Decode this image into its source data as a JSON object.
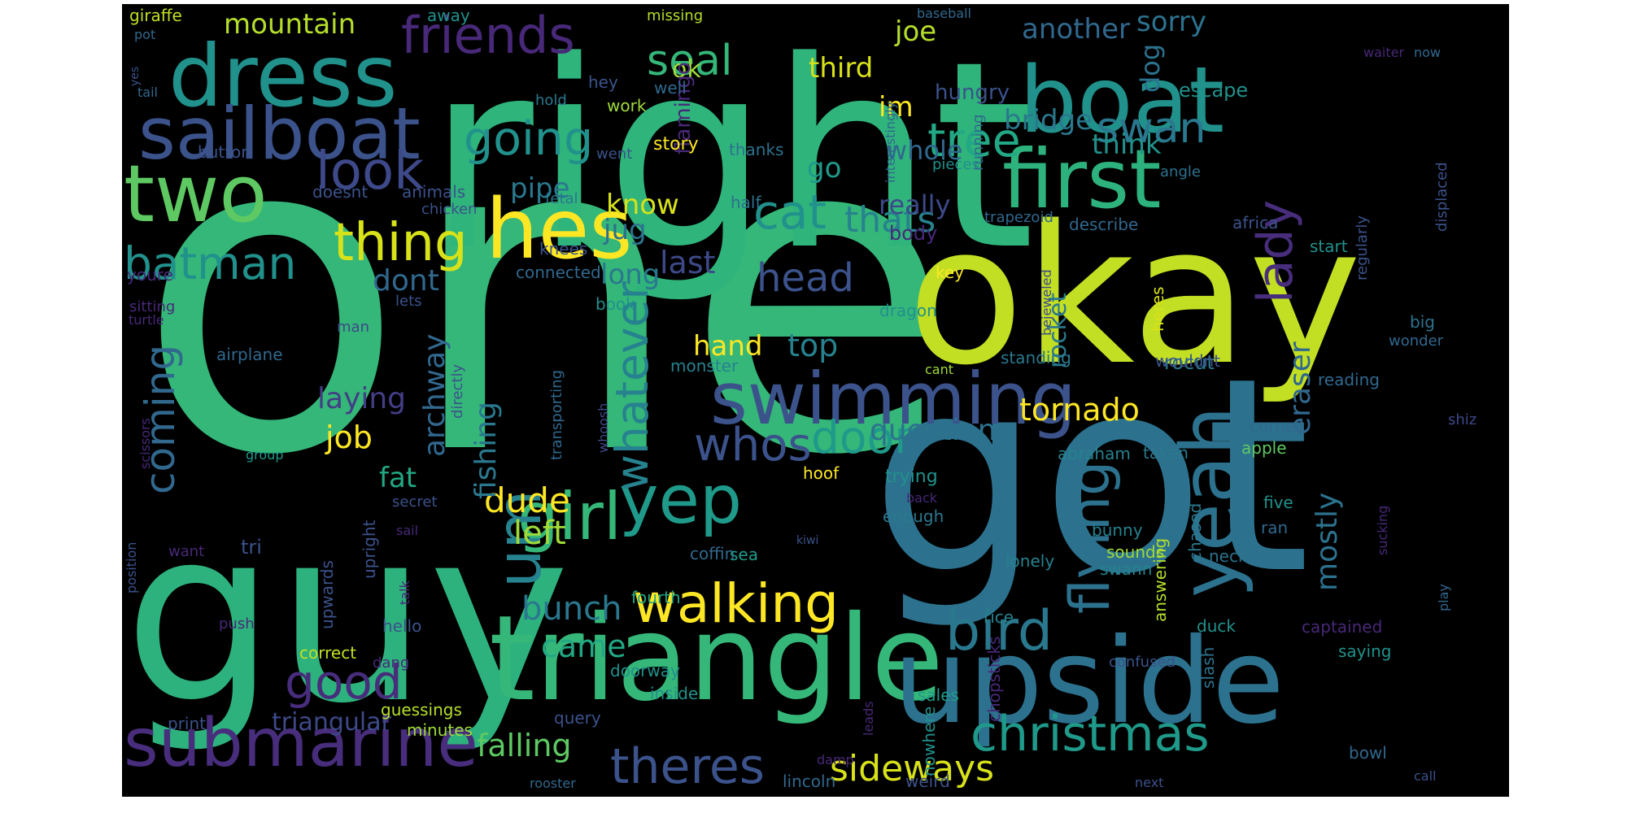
{
  "wordcloud": {
    "background": "#000000",
    "page_background": "#ffffff",
    "palette": "viridis",
    "words": [
      {
        "text": "one",
        "color": "#35b779"
      },
      {
        "text": "right",
        "color": "#2fb47c"
      },
      {
        "text": "got",
        "color": "#2c728e"
      },
      {
        "text": "guy",
        "color": "#2db27d"
      },
      {
        "text": "okay",
        "color": "#c2df23"
      },
      {
        "text": "triangle",
        "color": "#35b779"
      },
      {
        "text": "upside",
        "color": "#2c728e"
      },
      {
        "text": "boat",
        "color": "#21918c"
      },
      {
        "text": "dress",
        "color": "#21918c"
      },
      {
        "text": "two",
        "color": "#5ec962"
      },
      {
        "text": "first",
        "color": "#2db27d"
      },
      {
        "text": "sailboat",
        "color": "#3b528b"
      },
      {
        "text": "hes",
        "color": "#fde725"
      },
      {
        "text": "yeah",
        "color": "#2c728e"
      },
      {
        "text": "swimming",
        "color": "#3b528b"
      },
      {
        "text": "submarine",
        "color": "#472d7b"
      },
      {
        "text": "girl",
        "color": "#35b779"
      },
      {
        "text": "yep",
        "color": "#1f9a8a"
      },
      {
        "text": "walking",
        "color": "#fde725"
      },
      {
        "text": "christmas",
        "color": "#1f9a8a"
      },
      {
        "text": "thing",
        "color": "#d8e219"
      },
      {
        "text": "look",
        "color": "#3e4989"
      },
      {
        "text": "batman",
        "color": "#21918c"
      },
      {
        "text": "friends",
        "color": "#482878"
      },
      {
        "text": "seal",
        "color": "#35b779"
      },
      {
        "text": "going",
        "color": "#21918c"
      },
      {
        "text": "tree",
        "color": "#22a884"
      },
      {
        "text": "swan",
        "color": "#2a788e"
      },
      {
        "text": "cat",
        "color": "#21918c"
      },
      {
        "text": "thats",
        "color": "#26828e"
      },
      {
        "text": "head",
        "color": "#3b528b"
      },
      {
        "text": "lady",
        "color": "#472d7b"
      },
      {
        "text": "whatever",
        "color": "#26828e"
      },
      {
        "text": "whos",
        "color": "#3b528b"
      },
      {
        "text": "door",
        "color": "#1f9a8a"
      },
      {
        "text": "bird",
        "color": "#2a788e"
      },
      {
        "text": "flying",
        "color": "#2c728e"
      },
      {
        "text": "um",
        "color": "#26828e"
      },
      {
        "text": "good",
        "color": "#472d7b"
      },
      {
        "text": "theres",
        "color": "#3b528b"
      },
      {
        "text": "sideways",
        "color": "#d8e219"
      },
      {
        "text": "mountain",
        "color": "#b5de2b"
      },
      {
        "text": "coming",
        "color": "#31688e"
      },
      {
        "text": "laying",
        "color": "#433e85"
      },
      {
        "text": "job",
        "color": "#fde725"
      },
      {
        "text": "dude",
        "color": "#fde725"
      },
      {
        "text": "left",
        "color": "#a0da39"
      },
      {
        "text": "bunch",
        "color": "#2a788e"
      },
      {
        "text": "came",
        "color": "#22a884"
      },
      {
        "text": "fishing",
        "color": "#2a788e"
      },
      {
        "text": "archway",
        "color": "#31688e"
      },
      {
        "text": "falling",
        "color": "#5ec962"
      },
      {
        "text": "tornado",
        "color": "#fde725"
      },
      {
        "text": "question",
        "color": "#2c728e"
      },
      {
        "text": "eraser",
        "color": "#31688e"
      },
      {
        "text": "mostly",
        "color": "#2c728e"
      },
      {
        "text": "hand",
        "color": "#fde725"
      },
      {
        "text": "top",
        "color": "#26828e"
      },
      {
        "text": "triangular",
        "color": "#3e4989"
      },
      {
        "text": "dont",
        "color": "#31688e"
      },
      {
        "text": "another",
        "color": "#31688e"
      },
      {
        "text": "sorry",
        "color": "#2c728e"
      },
      {
        "text": "joe",
        "color": "#b5de2b"
      },
      {
        "text": "third",
        "color": "#d8e219"
      },
      {
        "text": "bridge",
        "color": "#2a788e"
      },
      {
        "text": "whole",
        "color": "#31688e"
      },
      {
        "text": "think",
        "color": "#21918c"
      },
      {
        "text": "really",
        "color": "#3e4989"
      },
      {
        "text": "go",
        "color": "#1f9a8a"
      },
      {
        "text": "im",
        "color": "#fde725"
      },
      {
        "text": "hungry",
        "color": "#3b528b"
      },
      {
        "text": "dog",
        "color": "#2c728e"
      },
      {
        "text": "escape",
        "color": "#21918c"
      },
      {
        "text": "know",
        "color": "#d8e219"
      },
      {
        "text": "jug",
        "color": "#2c728e"
      },
      {
        "text": "pipe",
        "color": "#2a788e"
      },
      {
        "text": "last",
        "color": "#3e4989"
      },
      {
        "text": "long",
        "color": "#2a788e"
      },
      {
        "text": "fat",
        "color": "#22a884"
      },
      {
        "text": "ok",
        "color": "#a0da39"
      },
      {
        "text": "rocket",
        "color": "#2a788e"
      },
      {
        "text": "rocut",
        "color": "#2a788e"
      },
      {
        "text": "flamingo",
        "color": "#482878"
      },
      {
        "text": "story",
        "color": "#fde725"
      },
      {
        "text": "giraffe",
        "color": "#c2df23"
      },
      {
        "text": "away",
        "color": "#21918c"
      },
      {
        "text": "missing",
        "color": "#b5de2b"
      },
      {
        "text": "baseball",
        "color": "#31688e"
      },
      {
        "text": "hey",
        "color": "#3b528b"
      },
      {
        "text": "work",
        "color": "#a0da39"
      },
      {
        "text": "well",
        "color": "#31688e"
      },
      {
        "text": "hold",
        "color": "#2a788e"
      },
      {
        "text": "thanks",
        "color": "#2c728e"
      },
      {
        "text": "button",
        "color": "#3b528b"
      },
      {
        "text": "went",
        "color": "#3b528b"
      },
      {
        "text": "half",
        "color": "#2c728e"
      },
      {
        "text": "fetal",
        "color": "#2a788e"
      },
      {
        "text": "doesnt",
        "color": "#3b528b"
      },
      {
        "text": "animals",
        "color": "#3b528b"
      },
      {
        "text": "chicken",
        "color": "#3b528b"
      },
      {
        "text": "knees",
        "color": "#3b528b"
      },
      {
        "text": "connected",
        "color": "#31688e"
      },
      {
        "text": "youre",
        "color": "#482878"
      },
      {
        "text": "lets",
        "color": "#3b528b"
      },
      {
        "text": "sitting",
        "color": "#482878"
      },
      {
        "text": "turtle",
        "color": "#482878"
      },
      {
        "text": "book",
        "color": "#21918c"
      },
      {
        "text": "man",
        "color": "#3e4989"
      },
      {
        "text": "airplane",
        "color": "#31688e"
      },
      {
        "text": "monster",
        "color": "#26828e"
      },
      {
        "text": "directly",
        "color": "#3b528b"
      },
      {
        "text": "transporting",
        "color": "#31688e"
      },
      {
        "text": "whoosh",
        "color": "#3e4989"
      },
      {
        "text": "scissors",
        "color": "#482878"
      },
      {
        "text": "group",
        "color": "#1f9a8a"
      },
      {
        "text": "secret",
        "color": "#3b528b"
      },
      {
        "text": "upright",
        "color": "#3b528b"
      },
      {
        "text": "upwards",
        "color": "#3b528b"
      },
      {
        "text": "tri",
        "color": "#3b528b"
      },
      {
        "text": "want",
        "color": "#482878"
      },
      {
        "text": "position",
        "color": "#3b528b"
      },
      {
        "text": "push",
        "color": "#482878"
      },
      {
        "text": "talk",
        "color": "#482878"
      },
      {
        "text": "hello",
        "color": "#3b528b"
      },
      {
        "text": "correct",
        "color": "#c2df23"
      },
      {
        "text": "dang",
        "color": "#482878"
      },
      {
        "text": "print",
        "color": "#3b528b"
      },
      {
        "text": "guessings",
        "color": "#b5de2b"
      },
      {
        "text": "minutes",
        "color": "#a0da39"
      },
      {
        "text": "query",
        "color": "#3b528b"
      },
      {
        "text": "rooster",
        "color": "#31688e"
      },
      {
        "text": "sail",
        "color": "#482878"
      },
      {
        "text": "kiwi",
        "color": "#3b528b"
      },
      {
        "text": "coffin",
        "color": "#31688e"
      },
      {
        "text": "sea",
        "color": "#1f9a8a"
      },
      {
        "text": "fourth",
        "color": "#22a884"
      },
      {
        "text": "doorway",
        "color": "#21918c"
      },
      {
        "text": "inside",
        "color": "#21918c"
      },
      {
        "text": "lincoln",
        "color": "#31688e"
      },
      {
        "text": "weird",
        "color": "#3b528b"
      },
      {
        "text": "damp",
        "color": "#482878"
      },
      {
        "text": "sales",
        "color": "#1f9a8a"
      },
      {
        "text": "leads",
        "color": "#482878"
      },
      {
        "text": "nowhere",
        "color": "#21918c"
      },
      {
        "text": "chopsticks",
        "color": "#482878"
      },
      {
        "text": "swann",
        "color": "#26828e"
      },
      {
        "text": "rice",
        "color": "#26828e"
      },
      {
        "text": "confused",
        "color": "#3b528b"
      },
      {
        "text": "slash",
        "color": "#2c728e"
      },
      {
        "text": "duck",
        "color": "#21918c"
      },
      {
        "text": "next",
        "color": "#3b528b"
      },
      {
        "text": "bowl",
        "color": "#31688e"
      },
      {
        "text": "call",
        "color": "#3b528b"
      },
      {
        "text": "saying",
        "color": "#21918c"
      },
      {
        "text": "captained",
        "color": "#482878"
      },
      {
        "text": "play",
        "color": "#31688e"
      },
      {
        "text": "sucking",
        "color": "#482878"
      },
      {
        "text": "neck",
        "color": "#2c728e"
      },
      {
        "text": "ran",
        "color": "#31688e"
      },
      {
        "text": "five",
        "color": "#21918c"
      },
      {
        "text": "bunny",
        "color": "#26828e"
      },
      {
        "text": "sounds",
        "color": "#a0da39"
      },
      {
        "text": "answering",
        "color": "#b5de2b"
      },
      {
        "text": "chased",
        "color": "#2a788e"
      },
      {
        "text": "lonely",
        "color": "#26828e"
      },
      {
        "text": "taken",
        "color": "#2a788e"
      },
      {
        "text": "abraham",
        "color": "#26828e"
      },
      {
        "text": "apple",
        "color": "#5ec962"
      },
      {
        "text": "corner",
        "color": "#31688e"
      },
      {
        "text": "shiz",
        "color": "#3e4989"
      },
      {
        "text": "reading",
        "color": "#31688e"
      },
      {
        "text": "wonder",
        "color": "#31688e"
      },
      {
        "text": "big",
        "color": "#2c728e"
      },
      {
        "text": "wouldnt",
        "color": "#3b528b"
      },
      {
        "text": "standing",
        "color": "#2a788e"
      },
      {
        "text": "heres",
        "color": "#d8e219"
      },
      {
        "text": "cant",
        "color": "#a0da39"
      },
      {
        "text": "bejeweled",
        "color": "#3e4989"
      },
      {
        "text": "key",
        "color": "#fde725"
      },
      {
        "text": "dragon",
        "color": "#21918c"
      },
      {
        "text": "body",
        "color": "#482878"
      },
      {
        "text": "trapezoid",
        "color": "#31688e"
      },
      {
        "text": "describe",
        "color": "#31688e"
      },
      {
        "text": "africa",
        "color": "#3b528b"
      },
      {
        "text": "start",
        "color": "#21918c"
      },
      {
        "text": "regularly",
        "color": "#3b528b"
      },
      {
        "text": "displaced",
        "color": "#3b528b"
      },
      {
        "text": "angle",
        "color": "#2c728e"
      },
      {
        "text": "pieces",
        "color": "#21918c"
      },
      {
        "text": "running",
        "color": "#31688e"
      },
      {
        "text": "interestingly",
        "color": "#31688e"
      },
      {
        "text": "hoof",
        "color": "#fde725"
      },
      {
        "text": "trying",
        "color": "#21918c"
      },
      {
        "text": "back",
        "color": "#482878"
      },
      {
        "text": "enough",
        "color": "#2a788e"
      },
      {
        "text": "waiter",
        "color": "#482878"
      },
      {
        "text": "now",
        "color": "#31688e"
      },
      {
        "text": "pot",
        "color": "#31688e"
      },
      {
        "text": "yes",
        "color": "#3b528b"
      },
      {
        "text": "tail",
        "color": "#31688e"
      }
    ]
  }
}
